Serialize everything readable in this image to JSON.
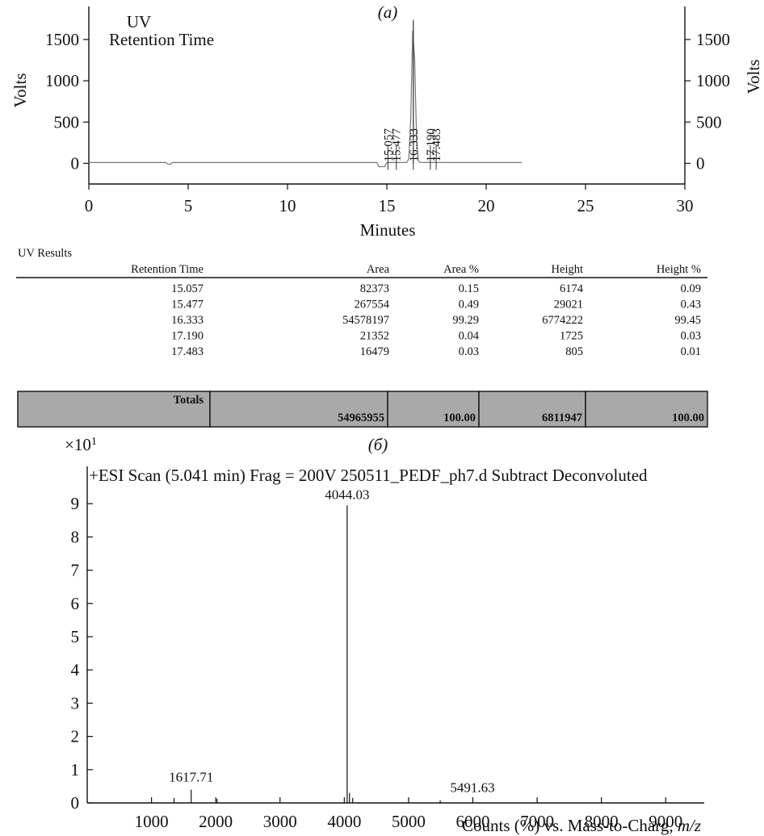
{
  "chart_data": [
    {
      "type": "line",
      "panel_label": "(a)",
      "title_lines": [
        "UV",
        "Retention Time"
      ],
      "xlabel": "Minutes",
      "ylabel": "Volts",
      "ylabel_right": "Volts",
      "xlim": [
        0,
        30
      ],
      "ylim": [
        -250,
        1900
      ],
      "x_ticks": [
        0,
        5,
        10,
        15,
        20,
        25,
        30
      ],
      "y_ticks": [
        0,
        500,
        1000,
        1500
      ],
      "trace_range": [
        0,
        21.8
      ],
      "peaks": [
        {
          "label": "15.057",
          "x": 15.057,
          "height": 60
        },
        {
          "label": "15.477",
          "x": 15.477,
          "height": 120
        },
        {
          "label": "16.333",
          "x": 16.333,
          "height": 1720
        },
        {
          "label": "17.190",
          "x": 17.19,
          "height": 30
        },
        {
          "label": "17.483",
          "x": 17.483,
          "height": 20
        }
      ],
      "results_table": {
        "title": "UV Results",
        "columns": [
          "Retention Time",
          "Area",
          "Area %",
          "Height",
          "Height %"
        ],
        "rows": [
          [
            "15.057",
            "82373",
            "0.15",
            "6174",
            "0.09"
          ],
          [
            "15.477",
            "267554",
            "0.49",
            "29021",
            "0.43"
          ],
          [
            "16.333",
            "54578197",
            "99.29",
            "6774222",
            "99.45"
          ],
          [
            "17.190",
            "21352",
            "0.04",
            "1725",
            "0.03"
          ],
          [
            "17.483",
            "16479",
            "0.03",
            "805",
            "0.01"
          ]
        ],
        "totals": {
          "label": "Totals",
          "area": "54965955",
          "area_pct": "100.00",
          "height": "6811947",
          "height_pct": "100.00"
        }
      }
    },
    {
      "type": "bar",
      "panel_label": "(б)",
      "scale_label": "×10",
      "scale_exp": "1",
      "title": "+ESI Scan (5.041 min) Frag = 200V 250511_PEDF_ph7.d Subtract Deconvoluted",
      "xlabel_prefix": "Counts (%) vs. Mass-to-Charg, ",
      "xlabel_var": "m/z",
      "xlim": [
        0,
        9600
      ],
      "ylim": [
        0,
        10
      ],
      "x_ticks": [
        1000,
        2000,
        3000,
        4000,
        5000,
        6000,
        7000,
        8000,
        9000
      ],
      "y_ticks": [
        0,
        1,
        2,
        3,
        4,
        5,
        6,
        7,
        8,
        9
      ],
      "peaks": [
        {
          "x": 1350,
          "y": 0.15
        },
        {
          "x": 1617.71,
          "y": 0.4,
          "label": "1617.71"
        },
        {
          "x": 2020,
          "y": 0.12
        },
        {
          "x": 4044.03,
          "y": 8.95,
          "label": "4044.03"
        },
        {
          "x": 4080,
          "y": 0.3
        },
        {
          "x": 4130,
          "y": 0.15
        },
        {
          "x": 5491.63,
          "y": 0.08,
          "label": "5491.63"
        }
      ]
    }
  ]
}
